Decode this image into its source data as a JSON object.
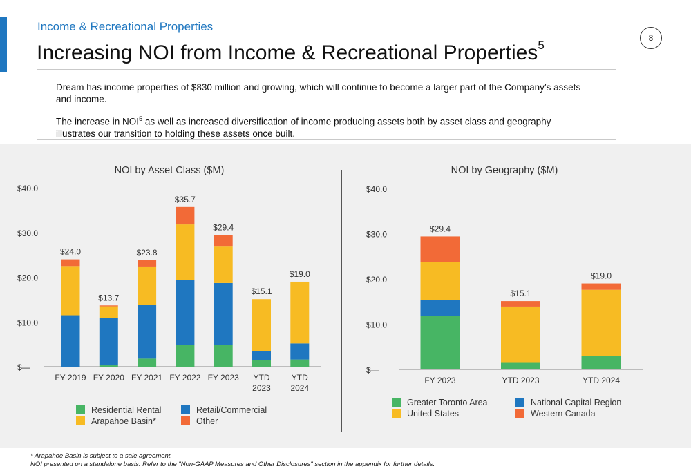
{
  "header": {
    "section": "Income & Recreational Properties",
    "title": "Increasing NOI from Income & Recreational Properties",
    "title_superscript": "5",
    "page_number": "8",
    "accent_color": "#1f77c0"
  },
  "summary": {
    "paragraph1": "Dream has income properties of $830 million and growing, which will continue to become a larger part of the Company’s assets and income.",
    "paragraph2_before": "The increase in NOI",
    "paragraph2_superscript": "5",
    "paragraph2_after": " as well as increased diversification of income producing assets both by asset class and geography illustrates our transition to holding these assets once built."
  },
  "chart_data": [
    {
      "type": "bar",
      "stacked": true,
      "title": "NOI by Asset Class ($M)",
      "categories": [
        "FY 2019",
        "FY 2020",
        "FY 2021",
        "FY 2022",
        "FY 2023",
        "YTD 2023",
        "YTD 2024"
      ],
      "category_lines": [
        [
          "FY 2019"
        ],
        [
          "FY 2020"
        ],
        [
          "FY 2021"
        ],
        [
          "FY 2022"
        ],
        [
          "FY 2023"
        ],
        [
          "YTD",
          "2023"
        ],
        [
          "YTD",
          "2024"
        ]
      ],
      "ylim": [
        0,
        40
      ],
      "yticks": [
        0,
        10,
        20,
        30,
        40
      ],
      "ytick_labels": [
        "$—",
        "$10.0",
        "$20.0",
        "$30.0",
        "$40.0"
      ],
      "series": [
        {
          "name": "Residential Rental",
          "color": "#47b564",
          "values": [
            0.0,
            0.3,
            1.8,
            4.8,
            4.8,
            1.4,
            1.6
          ]
        },
        {
          "name": "Retail/Commercial",
          "color": "#1f77c0",
          "values": [
            11.5,
            10.6,
            12.0,
            14.6,
            13.9,
            2.1,
            3.6
          ]
        },
        {
          "name": "Arapahoe Basin*",
          "color": "#f7bb23",
          "values": [
            11.0,
            2.6,
            8.6,
            12.4,
            8.3,
            11.6,
            13.8
          ]
        },
        {
          "name": "Other",
          "color": "#f26a37",
          "values": [
            1.5,
            0.2,
            1.4,
            3.9,
            2.4,
            0.0,
            0.0
          ]
        }
      ],
      "totals": [
        24.0,
        13.7,
        23.8,
        35.7,
        29.4,
        15.1,
        19.0
      ],
      "total_labels": [
        "$24.0",
        "$13.7",
        "$23.8",
        "$35.7",
        "$29.4",
        "$15.1",
        "$19.0"
      ],
      "legend": "bottom",
      "grid": false
    },
    {
      "type": "bar",
      "stacked": true,
      "title": "NOI by Geography ($M)",
      "categories": [
        "FY 2023",
        "YTD 2023",
        "YTD 2024"
      ],
      "category_lines": [
        [
          "FY 2023"
        ],
        [
          "YTD 2023"
        ],
        [
          "YTD 2024"
        ]
      ],
      "ylim": [
        0,
        40
      ],
      "yticks": [
        0,
        10,
        20,
        30,
        40
      ],
      "ytick_labels": [
        "$—",
        "$10.0",
        "$20.0",
        "$30.0",
        "$40.0"
      ],
      "series": [
        {
          "name": "Greater Toronto Area",
          "color": "#47b564",
          "values": [
            11.8,
            1.6,
            3.0
          ]
        },
        {
          "name": "National Capital Region",
          "color": "#1f77c0",
          "values": [
            3.6,
            0.0,
            0.0
          ]
        },
        {
          "name": "United States",
          "color": "#f7bb23",
          "values": [
            8.3,
            12.3,
            14.6
          ]
        },
        {
          "name": "Western Canada",
          "color": "#f26a37",
          "values": [
            5.7,
            1.2,
            1.4
          ]
        }
      ],
      "totals": [
        29.4,
        15.1,
        19.0
      ],
      "total_labels": [
        "$29.4",
        "$15.1",
        "$19.0"
      ],
      "legend": "bottom",
      "grid": false
    }
  ],
  "footnotes": {
    "line1": "* Arapahoe Basin is subject to a sale agreement.",
    "line2": "NOI presented on a standalone basis. Refer to the \"Non-GAAP Measures and Other Disclosures\" section in the appendix for further details."
  }
}
